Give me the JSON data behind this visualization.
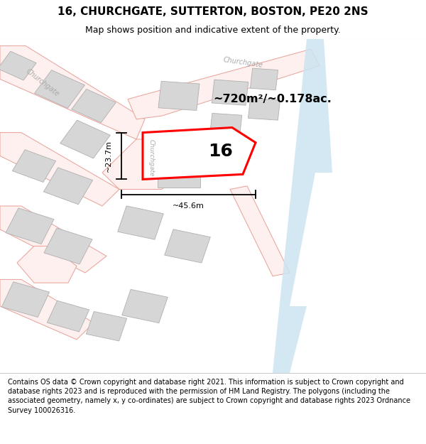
{
  "title": "16, CHURCHGATE, SUTTERTON, BOSTON, PE20 2NS",
  "subtitle": "Map shows position and indicative extent of the property.",
  "area_label": "~720m²/~0.178ac.",
  "number_label": "16",
  "dim_h": "~23.7m",
  "dim_w": "~45.6m",
  "street_label_left": "Churchgate",
  "street_label_right": "Churchgate",
  "footer": "Contains OS data © Crown copyright and database right 2021. This information is subject to Crown copyright and database rights 2023 and is reproduced with the permission of HM Land Registry. The polygons (including the associated geometry, namely x, y co-ordinates) are subject to Crown copyright and database rights 2023 Ordnance Survey 100026316.",
  "bg_color": "#f5f5f5",
  "map_bg": "#ffffff",
  "road_line_color": "#e8a098",
  "road_fill_color": "#fdf0ee",
  "building_facecolor": "#d6d6d6",
  "building_edgecolor": "#b0b0b0",
  "highlight_color": "#ff0000",
  "water_color": "#cce4f0",
  "title_fontsize": 11,
  "subtitle_fontsize": 9,
  "footer_fontsize": 7.0,
  "street_color": "#aaaaaa"
}
